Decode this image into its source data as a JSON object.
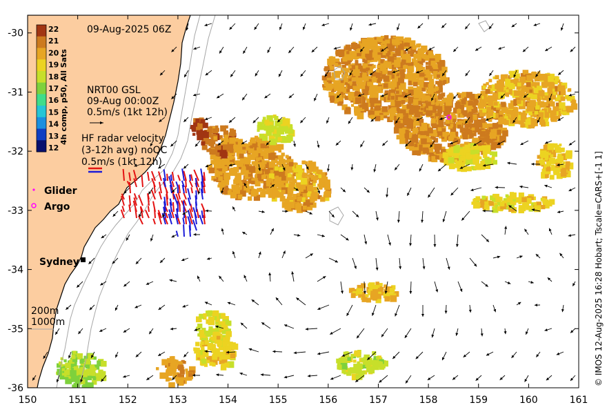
{
  "map": {
    "date_label": "09-Aug-2025 06Z",
    "x_ticks": [
      "150",
      "151",
      "152",
      "153",
      "154",
      "155",
      "156",
      "157",
      "158",
      "159",
      "160",
      "161"
    ],
    "y_ticks": [
      "-30",
      "-31",
      "-32",
      "-33",
      "-34",
      "-35",
      "-36"
    ],
    "lon_range": [
      150,
      161
    ],
    "lat_range": [
      -36,
      -29.7
    ],
    "colors": {
      "land": "#fccda0",
      "ocean": "#ffffff",
      "bathy": "#a6a6a6",
      "vector": "#000000"
    }
  },
  "colorbar": {
    "label": "4h comp, p50, All Sats",
    "ticks": [
      "22",
      "21",
      "20",
      "19",
      "18",
      "17",
      "16",
      "15",
      "14",
      "13",
      "12"
    ],
    "range": [
      12,
      22
    ],
    "stops": [
      "#08106e",
      "#0f3ec2",
      "#1a8fe0",
      "#25c5d6",
      "#3fdc8a",
      "#7ed13c",
      "#c7df2a",
      "#ecd321",
      "#e7a523",
      "#cd7a1e",
      "#a13512"
    ]
  },
  "current_legend": {
    "lines": [
      "NRT00 GSL",
      "09-Aug 00:00Z",
      "0.5m/s (1kt 12h)"
    ]
  },
  "hf_radar": {
    "lines": [
      "HF radar velocity",
      "(3-12h avg) noQC",
      "0.5m/s (1kt 12h)"
    ],
    "colors": [
      "#e31212",
      "#1a1ad8"
    ]
  },
  "legend": {
    "glider": {
      "label": "Glider",
      "color": "#ff00ff"
    },
    "argo": {
      "label": "Argo",
      "color": "#ff00ff"
    }
  },
  "city": {
    "name": "Sydney"
  },
  "bathymetry": {
    "labels": [
      "200m",
      "1000m"
    ]
  },
  "credit": "© IMOS 12-Aug-2025 16:28 Hobart; Tscale=CARS+[-1 1]",
  "features": {
    "argo_float": {
      "lon": 158.4,
      "lat": -31.45
    },
    "sydney": {
      "lon": 150.95,
      "lat": -33.87
    }
  }
}
